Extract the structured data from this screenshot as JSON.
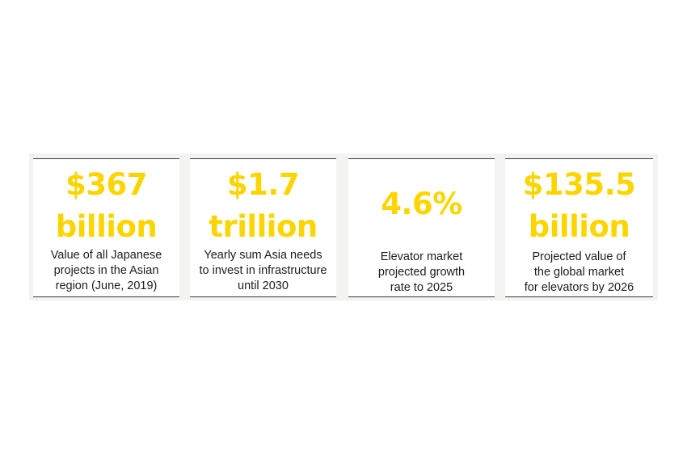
{
  "stats": [
    {
      "value_lines": [
        "$367",
        "billion"
      ],
      "description_lines": [
        "Value of all Japanese",
        "projects in the Asian",
        "region (June, 2019)"
      ]
    },
    {
      "value_lines": [
        "$1.7",
        "trillion"
      ],
      "description_lines": [
        "Yearly sum Asia needs",
        "to invest in infrastructure",
        "until 2030"
      ]
    },
    {
      "value_lines": [
        "4.6%"
      ],
      "description_lines": [
        "Elevator market",
        "projected growth",
        "rate to 2025"
      ]
    },
    {
      "value_lines": [
        "$135.5",
        "billion"
      ],
      "description_lines": [
        "Projected value of",
        "the global market",
        "for elevators by 2026"
      ]
    }
  ],
  "colors": {
    "accent": "#fcd500",
    "text": "#1c1c1c",
    "panel": "#f3f3f1",
    "divider": "#3a3a3a"
  }
}
